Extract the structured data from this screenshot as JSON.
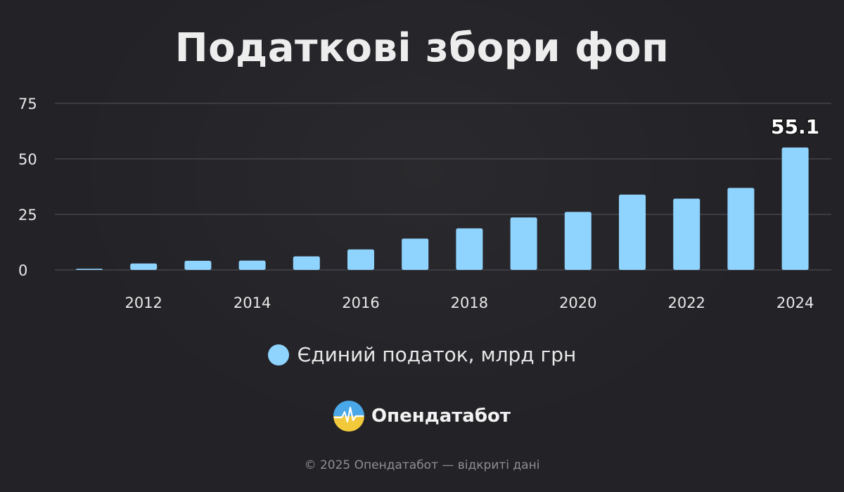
{
  "title": "Податкові збори фоп",
  "chart_data": {
    "type": "bar",
    "x": [
      2011,
      2012,
      2013,
      2014,
      2015,
      2016,
      2017,
      2018,
      2019,
      2020,
      2021,
      2022,
      2023,
      2024
    ],
    "x_tick_labels": [
      "2012",
      "2014",
      "2016",
      "2018",
      "2020",
      "2022",
      "2024"
    ],
    "series": [
      {
        "name": "Єдиний податок, млрд грн",
        "values": [
          0.5,
          2.9,
          4.1,
          4.2,
          6.1,
          9.2,
          14.1,
          18.7,
          23.6,
          26.1,
          33.9,
          32.1,
          36.9,
          55.1
        ],
        "color": "#8fd3ff"
      }
    ],
    "y_ticks": [
      "0",
      "25",
      "50",
      "75"
    ],
    "ylim": [
      0,
      75
    ],
    "grid": true,
    "data_labels": [
      {
        "x": 2024,
        "text": "55.1"
      }
    ],
    "legend_position": "bottom"
  },
  "legend": {
    "label": "Єдиний податок, млрд грн"
  },
  "brand": {
    "name": "Опендатабот"
  },
  "footer": {
    "copyright": "© 2025 Опендатабот — відкриті дані"
  }
}
